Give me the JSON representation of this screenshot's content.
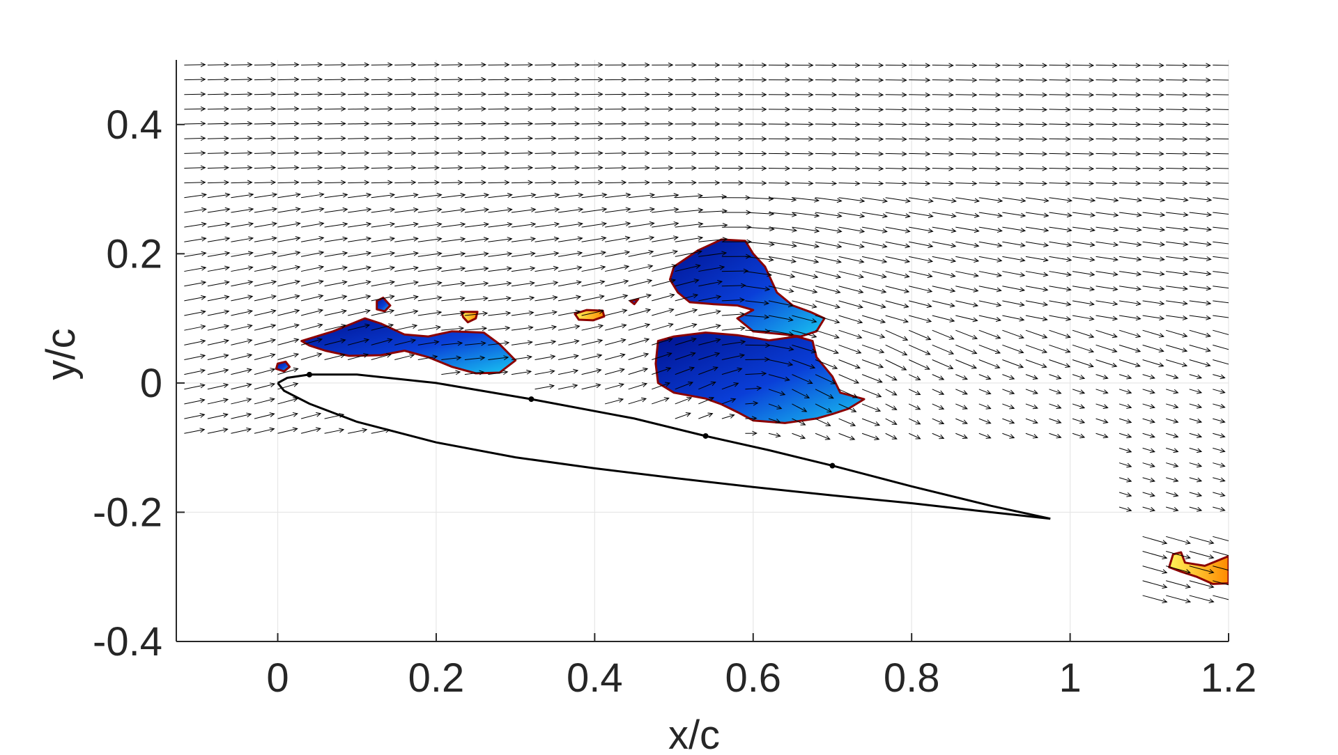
{
  "chart_data": {
    "type": "scatter",
    "xlabel": "x/c",
    "ylabel": "y/c",
    "xlim": [
      -0.128,
      1.2
    ],
    "ylim": [
      -0.4,
      0.5
    ],
    "xticks": [
      0,
      0.2,
      0.4,
      0.6,
      0.8,
      1,
      1.2
    ],
    "xtick_labels": [
      "0",
      "0.2",
      "0.4",
      "0.6",
      "0.8",
      "1",
      "1.2"
    ],
    "yticks": [
      -0.4,
      -0.2,
      0,
      0.2,
      0.4
    ],
    "ytick_labels": [
      "-0.4",
      "-0.2",
      "0",
      "0.2",
      "0.4"
    ],
    "grid": true,
    "colors": {
      "axis": "#262626",
      "grid": "#e6e6e6",
      "vector": "#000000",
      "contour_edge": "#8b0000",
      "vortex_dark": "#00118f",
      "vortex_light": "#19c8f2",
      "warm_light": "#fff35a",
      "warm_dark": "#ff8a00"
    },
    "airfoil": {
      "leading_edge": [
        0.0,
        0.0
      ],
      "trailing_edge": [
        0.975,
        -0.21
      ],
      "upper_surface": [
        [
          0,
          0
        ],
        [
          0.012,
          0.008
        ],
        [
          0.04,
          0.013
        ],
        [
          0.1,
          0.013
        ],
        [
          0.2,
          0.0
        ],
        [
          0.32,
          -0.025
        ],
        [
          0.45,
          -0.055
        ],
        [
          0.54,
          -0.082
        ],
        [
          0.62,
          -0.104
        ],
        [
          0.7,
          -0.128
        ],
        [
          0.8,
          -0.16
        ],
        [
          0.9,
          -0.19
        ],
        [
          0.975,
          -0.21
        ]
      ],
      "lower_surface": [
        [
          0,
          0
        ],
        [
          0.008,
          -0.012
        ],
        [
          0.04,
          -0.032
        ],
        [
          0.1,
          -0.06
        ],
        [
          0.2,
          -0.092
        ],
        [
          0.3,
          -0.115
        ],
        [
          0.4,
          -0.132
        ],
        [
          0.5,
          -0.147
        ],
        [
          0.6,
          -0.161
        ],
        [
          0.7,
          -0.174
        ],
        [
          0.8,
          -0.186
        ],
        [
          0.9,
          -0.2
        ],
        [
          0.975,
          -0.21
        ]
      ],
      "markers": [
        [
          0.04,
          0.013
        ],
        [
          0.32,
          -0.025
        ],
        [
          0.54,
          -0.082
        ],
        [
          0.7,
          -0.128
        ]
      ]
    },
    "vortex_regions": [
      {
        "name": "lev-small",
        "kind": "vortex",
        "points": [
          [
            0.0,
            0.03
          ],
          [
            0.01,
            0.033
          ],
          [
            0.015,
            0.025
          ],
          [
            0.008,
            0.018
          ],
          [
            -0.002,
            0.022
          ]
        ]
      },
      {
        "name": "shear-layer-vortex",
        "kind": "vortex",
        "points": [
          [
            0.03,
            0.065
          ],
          [
            0.07,
            0.08
          ],
          [
            0.11,
            0.1
          ],
          [
            0.13,
            0.092
          ],
          [
            0.16,
            0.075
          ],
          [
            0.19,
            0.072
          ],
          [
            0.22,
            0.08
          ],
          [
            0.26,
            0.078
          ],
          [
            0.28,
            0.06
          ],
          [
            0.3,
            0.035
          ],
          [
            0.28,
            0.016
          ],
          [
            0.25,
            0.015
          ],
          [
            0.22,
            0.025
          ],
          [
            0.19,
            0.04
          ],
          [
            0.16,
            0.05
          ],
          [
            0.13,
            0.043
          ],
          [
            0.09,
            0.042
          ],
          [
            0.06,
            0.05
          ],
          [
            0.04,
            0.058
          ]
        ]
      },
      {
        "name": "small-vortex-1",
        "kind": "vortex",
        "points": [
          [
            0.125,
            0.127
          ],
          [
            0.133,
            0.132
          ],
          [
            0.142,
            0.12
          ],
          [
            0.135,
            0.111
          ],
          [
            0.125,
            0.114
          ]
        ]
      },
      {
        "name": "upper-dsv",
        "kind": "vortex",
        "points": [
          [
            0.5,
            0.18
          ],
          [
            0.53,
            0.205
          ],
          [
            0.56,
            0.222
          ],
          [
            0.59,
            0.22
          ],
          [
            0.6,
            0.2
          ],
          [
            0.615,
            0.18
          ],
          [
            0.63,
            0.14
          ],
          [
            0.65,
            0.12
          ],
          [
            0.672,
            0.11
          ],
          [
            0.69,
            0.1
          ],
          [
            0.68,
            0.08
          ],
          [
            0.66,
            0.072
          ],
          [
            0.64,
            0.075
          ],
          [
            0.6,
            0.08
          ],
          [
            0.58,
            0.1
          ],
          [
            0.6,
            0.113
          ],
          [
            0.58,
            0.12
          ],
          [
            0.55,
            0.122
          ],
          [
            0.52,
            0.125
          ],
          [
            0.505,
            0.14
          ],
          [
            0.495,
            0.16
          ]
        ]
      },
      {
        "name": "main-dsv",
        "kind": "vortex",
        "points": [
          [
            0.48,
            0.065
          ],
          [
            0.5,
            0.072
          ],
          [
            0.54,
            0.078
          ],
          [
            0.58,
            0.074
          ],
          [
            0.62,
            0.066
          ],
          [
            0.655,
            0.072
          ],
          [
            0.675,
            0.065
          ],
          [
            0.68,
            0.04
          ],
          [
            0.7,
            0.01
          ],
          [
            0.71,
            -0.015
          ],
          [
            0.74,
            -0.025
          ],
          [
            0.72,
            -0.04
          ],
          [
            0.7,
            -0.048
          ],
          [
            0.68,
            -0.055
          ],
          [
            0.64,
            -0.062
          ],
          [
            0.6,
            -0.058
          ],
          [
            0.58,
            -0.045
          ],
          [
            0.56,
            -0.033
          ],
          [
            0.54,
            -0.024
          ],
          [
            0.5,
            -0.015
          ],
          [
            0.48,
            0.0
          ],
          [
            0.477,
            0.03
          ]
        ]
      },
      {
        "name": "small-vortex-tail",
        "kind": "vortex",
        "points": [
          [
            0.445,
            0.127
          ],
          [
            0.455,
            0.13
          ],
          [
            0.45,
            0.122
          ]
        ]
      },
      {
        "name": "warm-spot-1",
        "kind": "warm",
        "points": [
          [
            0.232,
            0.11
          ],
          [
            0.252,
            0.11
          ],
          [
            0.25,
            0.1
          ],
          [
            0.24,
            0.094
          ],
          [
            0.234,
            0.102
          ]
        ]
      },
      {
        "name": "warm-spot-2",
        "kind": "warm",
        "points": [
          [
            0.375,
            0.107
          ],
          [
            0.39,
            0.113
          ],
          [
            0.41,
            0.112
          ],
          [
            0.412,
            0.103
          ],
          [
            0.398,
            0.097
          ],
          [
            0.38,
            0.098
          ]
        ]
      },
      {
        "name": "wake-vortex",
        "kind": "warm",
        "points": [
          [
            1.125,
            -0.285
          ],
          [
            1.13,
            -0.265
          ],
          [
            1.14,
            -0.262
          ],
          [
            1.145,
            -0.278
          ],
          [
            1.17,
            -0.283
          ],
          [
            1.2,
            -0.268
          ],
          [
            1.2,
            -0.31
          ],
          [
            1.18,
            -0.311
          ],
          [
            1.16,
            -0.3
          ],
          [
            1.14,
            -0.292
          ]
        ]
      }
    ]
  }
}
